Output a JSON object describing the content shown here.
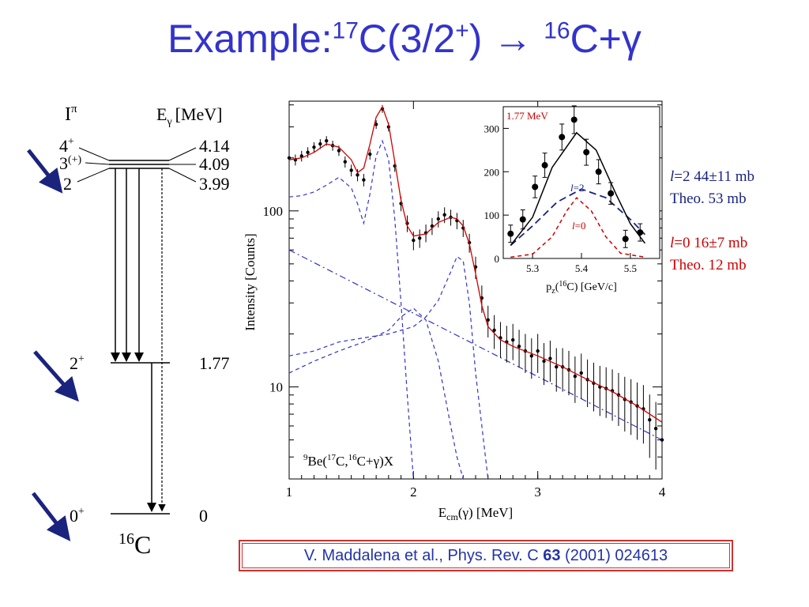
{
  "title": {
    "prefix": "Example:",
    "sup1": "17",
    "mid": "C(3/2",
    "sup2": "+",
    "close": ")",
    "arrow": "→",
    "sup3": "16",
    "end": "C+γ"
  },
  "level_scheme": {
    "col_spin": "I",
    "col_spin_sup": "π",
    "col_energy": "E",
    "col_energy_sub": "γ",
    "col_energy_unit": "[MeV]",
    "upper_levels": [
      {
        "spin": "4",
        "spin_sup": "+",
        "energy": "4.14"
      },
      {
        "spin": "3",
        "spin_sup": "(+)",
        "energy": "4.09"
      },
      {
        "spin": "2",
        "spin_sup": "",
        "energy": "3.99"
      }
    ],
    "level_2plus": {
      "spin": "2",
      "spin_sup": "+",
      "energy": "1.77"
    },
    "level_0plus": {
      "spin": "0",
      "spin_sup": "+",
      "energy": "0"
    },
    "nucleus_mass": "16",
    "nucleus_symbol": "C"
  },
  "results": {
    "l2_letter": "l",
    "l2_text": "=2  44±11 mb",
    "l2_theo": "Theo. 53 mb",
    "l0_letter": "l",
    "l0_text": "=0  16±7 mb",
    "l0_theo": "Theo. 12 mb"
  },
  "citation": {
    "text": "V. Maddalena et al., Phys. Rev. C ",
    "volume": "63",
    "rest": " (2001)  024613"
  },
  "colors": {
    "title": "#3333cc",
    "arrow": "#1a237e",
    "fit": "#cc0000",
    "components": "#3333cc",
    "l2": "#1a237e",
    "l0": "#cc0000"
  },
  "chart_data": [
    {
      "type": "scatter",
      "scale": "log-y",
      "xlabel": "E",
      "xlabel_sub": "cm",
      "xlabel_rest": "(γ)  [MeV]",
      "ylabel": "Intensity  [Counts]",
      "xlim": [
        1,
        4
      ],
      "ylim": [
        3,
        420
      ],
      "x_ticks": [
        "1",
        "2",
        "3",
        "4"
      ],
      "y_ticks": [
        "10",
        "100"
      ],
      "annotation": {
        "m1": "9",
        "a": "Be(",
        "m2": "17",
        "b": "C,",
        "m3": "16",
        "c": "C+γ)X"
      },
      "data": {
        "x": [
          1.0,
          1.05,
          1.1,
          1.15,
          1.2,
          1.25,
          1.3,
          1.35,
          1.4,
          1.45,
          1.5,
          1.55,
          1.6,
          1.65,
          1.7,
          1.75,
          1.8,
          1.85,
          1.9,
          1.95,
          2.0,
          2.05,
          2.1,
          2.15,
          2.2,
          2.25,
          2.3,
          2.35,
          2.4,
          2.45,
          2.5,
          2.55,
          2.6,
          2.65,
          2.7,
          2.75,
          2.8,
          2.85,
          2.9,
          2.95,
          3.0,
          3.05,
          3.1,
          3.15,
          3.2,
          3.25,
          3.3,
          3.35,
          3.4,
          3.45,
          3.5,
          3.55,
          3.6,
          3.65,
          3.7,
          3.75,
          3.8,
          3.85,
          3.9,
          3.95,
          4.0
        ],
        "y": [
          200,
          195,
          205,
          215,
          230,
          240,
          250,
          235,
          220,
          190,
          170,
          160,
          150,
          210,
          310,
          380,
          300,
          180,
          110,
          85,
          68,
          70,
          75,
          82,
          90,
          95,
          92,
          88,
          80,
          66,
          48,
          32,
          24,
          21,
          19,
          18,
          18.5,
          17,
          16,
          15,
          16,
          14,
          14.5,
          13,
          13,
          12.5,
          11.5,
          12,
          11,
          10.5,
          10,
          9.8,
          9.5,
          9,
          8.5,
          8.2,
          7.8,
          7.5,
          6.5,
          5.8,
          5
        ]
      },
      "fit_total": {
        "x": [
          1.0,
          1.1,
          1.2,
          1.3,
          1.4,
          1.5,
          1.55,
          1.6,
          1.65,
          1.7,
          1.75,
          1.8,
          1.85,
          1.9,
          1.95,
          2.0,
          2.1,
          2.2,
          2.3,
          2.35,
          2.4,
          2.45,
          2.5,
          2.55,
          2.6,
          2.7,
          2.8,
          3.0,
          3.2,
          3.4,
          3.6,
          3.8,
          4.0
        ],
        "y": [
          195,
          200,
          215,
          240,
          230,
          195,
          165,
          175,
          240,
          340,
          390,
          310,
          190,
          115,
          82,
          72,
          74,
          86,
          92,
          90,
          82,
          65,
          44,
          29,
          22,
          18.5,
          17,
          15,
          13,
          11,
          9.4,
          7.8,
          6.3
        ]
      },
      "component_l2_low": {
        "x": [
          1.0,
          1.1,
          1.2,
          1.3,
          1.4,
          1.5,
          1.55,
          1.6,
          1.65,
          1.7,
          1.75,
          1.8,
          1.85,
          1.9,
          1.95,
          2.0
        ],
        "y": [
          120,
          122,
          128,
          140,
          155,
          135,
          110,
          85,
          125,
          205,
          250,
          195,
          90,
          30,
          9,
          3
        ]
      },
      "component_l2_high": {
        "x": [
          1.0,
          1.2,
          1.4,
          1.6,
          1.8,
          2.0,
          2.1,
          2.2,
          2.3,
          2.35,
          2.4,
          2.45,
          2.5,
          2.55,
          2.6
        ],
        "y": [
          15,
          16,
          18,
          19,
          20,
          22,
          25,
          31,
          45,
          55,
          52,
          30,
          12,
          6,
          3
        ]
      },
      "component_mid": {
        "x": [
          1.0,
          1.2,
          1.4,
          1.6,
          1.8,
          1.9,
          2.0,
          2.1,
          2.2,
          2.3,
          2.35,
          2.4
        ],
        "y": [
          12,
          14,
          16,
          18,
          21,
          25,
          28,
          24,
          14,
          6,
          4,
          3
        ]
      },
      "background": {
        "x": [
          1.0,
          4.0
        ],
        "y": [
          60,
          5
        ]
      }
    },
    {
      "type": "scatter",
      "title": "1.77 MeV",
      "xlabel": "p",
      "xlabel_sub": "z",
      "xlabel_mid": "(",
      "xlabel_sup": "16",
      "xlabel_rest": "C)  [GeV/c]",
      "xlim": [
        5.24,
        5.56
      ],
      "ylim": [
        0,
        350
      ],
      "x_ticks": [
        "5.3",
        "5.4",
        "5.5"
      ],
      "y_ticks": [
        "0",
        "100",
        "200",
        "300"
      ],
      "data": {
        "x": [
          5.255,
          5.28,
          5.305,
          5.325,
          5.36,
          5.385,
          5.41,
          5.435,
          5.46,
          5.49,
          5.52
        ],
        "y": [
          57,
          90,
          165,
          215,
          280,
          320,
          245,
          200,
          150,
          45,
          60
        ],
        "err": [
          20,
          22,
          25,
          28,
          30,
          32,
          30,
          28,
          25,
          20,
          20
        ]
      },
      "fit_l2_plus_l0": {
        "x": [
          5.255,
          5.3,
          5.34,
          5.39,
          5.43,
          5.47,
          5.5,
          5.53
        ],
        "y": [
          30,
          95,
          210,
          290,
          250,
          150,
          80,
          35
        ]
      },
      "component_l2": {
        "x": [
          5.255,
          5.3,
          5.35,
          5.4,
          5.45,
          5.5,
          5.53
        ],
        "y": [
          30,
          75,
          130,
          160,
          140,
          90,
          55
        ],
        "label": "=2",
        "letter": "l"
      },
      "component_l0": {
        "x": [
          5.255,
          5.3,
          5.34,
          5.37,
          5.39,
          5.42,
          5.45,
          5.48,
          5.53
        ],
        "y": [
          3,
          10,
          50,
          110,
          140,
          110,
          50,
          12,
          3
        ],
        "label": "=0",
        "letter": "l"
      }
    }
  ]
}
